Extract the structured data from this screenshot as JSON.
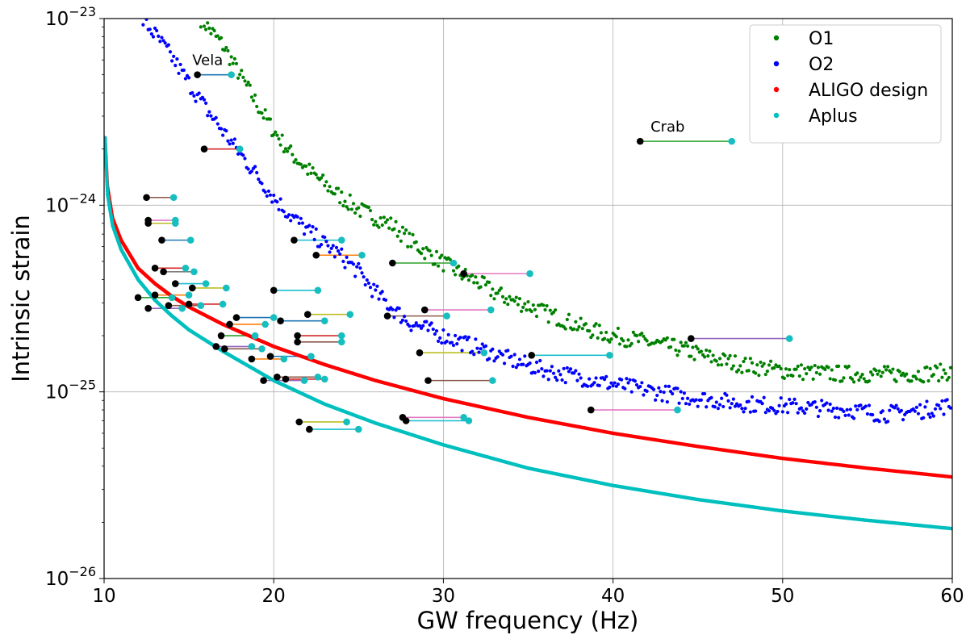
{
  "chart_data": {
    "type": "scatter",
    "xlabel": "GW frequency (Hz)",
    "ylabel": "Intrinsic strain",
    "xlim": [
      10,
      60
    ],
    "ylim": [
      1e-26,
      1e-23
    ],
    "yscale": "log",
    "grid": true,
    "legend_position": "top-right",
    "x_ticks": [
      {
        "value": 10,
        "label": "10"
      },
      {
        "value": 20,
        "label": "20"
      },
      {
        "value": 30,
        "label": "30"
      },
      {
        "value": 40,
        "label": "40"
      },
      {
        "value": 50,
        "label": "50"
      },
      {
        "value": 60,
        "label": "60"
      }
    ],
    "y_ticks": [
      {
        "value": 1e-26,
        "base": "10",
        "exp": "−26"
      },
      {
        "value": 1e-25,
        "base": "10",
        "exp": "−25"
      },
      {
        "value": 1e-24,
        "base": "10",
        "exp": "−24"
      },
      {
        "value": 1e-23,
        "base": "10",
        "exp": "−23"
      }
    ],
    "series": [
      {
        "name": "O1",
        "color": "#008000",
        "kind": "noisy",
        "points": [
          [
            15.7,
            1e-23
          ],
          [
            17,
            7.2e-24
          ],
          [
            18,
            5e-24
          ],
          [
            19,
            3.5e-24
          ],
          [
            20,
            2.5e-24
          ],
          [
            21,
            1.9e-24
          ],
          [
            22,
            1.55e-24
          ],
          [
            23,
            1.3e-24
          ],
          [
            24,
            1.1e-24
          ],
          [
            25,
            9.5e-25
          ],
          [
            26,
            8.6e-25
          ],
          [
            27,
            7.8e-25
          ],
          [
            28,
            6.5e-25
          ],
          [
            29,
            5.6e-25
          ],
          [
            30,
            4.9e-25
          ],
          [
            31,
            4.3e-25
          ],
          [
            32,
            3.9e-25
          ],
          [
            33,
            3.4e-25
          ],
          [
            34,
            3.1e-25
          ],
          [
            35,
            2.9e-25
          ],
          [
            36,
            2.65e-25
          ],
          [
            37,
            2.45e-25
          ],
          [
            38,
            2.25e-25
          ],
          [
            39,
            2.1e-25
          ],
          [
            40,
            2e-25
          ],
          [
            42,
            1.85e-25
          ],
          [
            44,
            1.7e-25
          ],
          [
            46,
            1.5e-25
          ],
          [
            48,
            1.38e-25
          ],
          [
            50,
            1.3e-25
          ],
          [
            53,
            1.25e-25
          ],
          [
            56,
            1.24e-25
          ],
          [
            58,
            1.25e-25
          ],
          [
            60,
            1.28e-25
          ]
        ]
      },
      {
        "name": "O2",
        "color": "#0000ff",
        "kind": "noisy",
        "points": [
          [
            12.2,
            1e-23
          ],
          [
            13,
            8.2e-24
          ],
          [
            14,
            6.2e-24
          ],
          [
            15,
            4.5e-24
          ],
          [
            16,
            3.3e-24
          ],
          [
            17,
            2.5e-24
          ],
          [
            18,
            1.9e-24
          ],
          [
            19,
            1.45e-24
          ],
          [
            20,
            1.1e-24
          ],
          [
            21,
            8.8e-25
          ],
          [
            22,
            7.3e-25
          ],
          [
            23,
            6.2e-25
          ],
          [
            24,
            5.3e-25
          ],
          [
            25,
            4.4e-25
          ],
          [
            26,
            3.4e-25
          ],
          [
            27,
            2.8e-25
          ],
          [
            28,
            2.35e-25
          ],
          [
            30,
            2e-25
          ],
          [
            32,
            1.72e-25
          ],
          [
            34,
            1.48e-25
          ],
          [
            36,
            1.3e-25
          ],
          [
            38,
            1.2e-25
          ],
          [
            40,
            1.1e-25
          ],
          [
            42,
            1.02e-25
          ],
          [
            44,
            9.5e-26
          ],
          [
            46,
            9e-26
          ],
          [
            48,
            8.6e-26
          ],
          [
            50,
            8.4e-26
          ],
          [
            52,
            8.2e-26
          ],
          [
            54,
            8e-26
          ],
          [
            56,
            7.6e-26
          ],
          [
            58,
            7.9e-26
          ],
          [
            60,
            8.5e-26
          ]
        ]
      },
      {
        "name": "ALIGO design",
        "color": "#ff0000",
        "kind": "smooth",
        "points": [
          [
            10.05,
            2.3e-24
          ],
          [
            10.2,
            1.25e-24
          ],
          [
            10.5,
            8.5e-25
          ],
          [
            11,
            6.5e-25
          ],
          [
            12,
            4.6e-25
          ],
          [
            13,
            3.8e-25
          ],
          [
            14,
            3.25e-25
          ],
          [
            15,
            2.85e-25
          ],
          [
            17,
            2.3e-25
          ],
          [
            20,
            1.75e-25
          ],
          [
            23,
            1.4e-25
          ],
          [
            26,
            1.15e-25
          ],
          [
            30,
            9.2e-26
          ],
          [
            35,
            7.3e-26
          ],
          [
            40,
            6e-26
          ],
          [
            45,
            5.1e-26
          ],
          [
            50,
            4.4e-26
          ],
          [
            55,
            3.9e-26
          ],
          [
            60,
            3.5e-26
          ]
        ]
      },
      {
        "name": "Aplus",
        "color": "#00bfbf",
        "kind": "smooth",
        "points": [
          [
            10.05,
            2.3e-24
          ],
          [
            10.2,
            1.15e-24
          ],
          [
            10.5,
            7.8e-25
          ],
          [
            11,
            5.8e-25
          ],
          [
            12,
            4e-25
          ],
          [
            13,
            3.1e-25
          ],
          [
            14,
            2.55e-25
          ],
          [
            15,
            2.15e-25
          ],
          [
            17,
            1.65e-25
          ],
          [
            20,
            1.15e-25
          ],
          [
            23,
            8.6e-26
          ],
          [
            26,
            6.8e-26
          ],
          [
            30,
            5.2e-26
          ],
          [
            35,
            3.9e-26
          ],
          [
            40,
            3.15e-26
          ],
          [
            45,
            2.65e-26
          ],
          [
            50,
            2.3e-26
          ],
          [
            55,
            2.05e-26
          ],
          [
            60,
            1.85e-26
          ]
        ]
      }
    ],
    "pulsar_pairs": [
      {
        "x1": 15.5,
        "x2": 17.5,
        "y": 5e-24,
        "color": "#1f77b4",
        "label": "Vela"
      },
      {
        "x1": 15.9,
        "x2": 18.0,
        "y": 2e-24,
        "color": "#d62728"
      },
      {
        "x1": 12.5,
        "x2": 14.1,
        "y": 1.1e-24,
        "color": "#8c564b"
      },
      {
        "x1": 12.6,
        "x2": 14.2,
        "y": 8.3e-25,
        "color": "#e377c2"
      },
      {
        "x1": 12.6,
        "x2": 14.2,
        "y": 8e-25,
        "color": "#bcbd22"
      },
      {
        "x1": 13.4,
        "x2": 15.1,
        "y": 6.5e-25,
        "color": "#1f77b4"
      },
      {
        "x1": 13.0,
        "x2": 14.8,
        "y": 4.6e-25,
        "color": "#d62728"
      },
      {
        "x1": 13.5,
        "x2": 15.3,
        "y": 4.4e-25,
        "color": "#7f7f7f"
      },
      {
        "x1": 14.2,
        "x2": 16.0,
        "y": 3.8e-25,
        "color": "#17becf"
      },
      {
        "x1": 15.2,
        "x2": 17.2,
        "y": 3.6e-25,
        "color": "#bcbd22"
      },
      {
        "x1": 12.0,
        "x2": 14.0,
        "y": 3.2e-25,
        "color": "#2ca02c"
      },
      {
        "x1": 13.0,
        "x2": 15.0,
        "y": 3.3e-25,
        "color": "#ff7f0e"
      },
      {
        "x1": 12.6,
        "x2": 14.6,
        "y": 2.8e-25,
        "color": "#9467bd"
      },
      {
        "x1": 13.8,
        "x2": 15.7,
        "y": 2.9e-25,
        "color": "#8c564b"
      },
      {
        "x1": 15.0,
        "x2": 17.0,
        "y": 2.95e-25,
        "color": "#d62728"
      },
      {
        "x1": 17.8,
        "x2": 20.0,
        "y": 2.5e-25,
        "color": "#1f77b4"
      },
      {
        "x1": 17.4,
        "x2": 19.5,
        "y": 2.3e-25,
        "color": "#ff7f0e"
      },
      {
        "x1": 16.9,
        "x2": 18.9,
        "y": 2e-25,
        "color": "#2ca02c"
      },
      {
        "x1": 16.6,
        "x2": 18.7,
        "y": 1.75e-25,
        "color": "#9467bd"
      },
      {
        "x1": 17.1,
        "x2": 19.3,
        "y": 1.7e-25,
        "color": "#8c564b"
      },
      {
        "x1": 18.7,
        "x2": 20.6,
        "y": 1.5e-25,
        "color": "#ff7f0e"
      },
      {
        "x1": 19.8,
        "x2": 22.2,
        "y": 1.55e-25,
        "color": "#1f77b4"
      },
      {
        "x1": 19.4,
        "x2": 21.8,
        "y": 1.15e-25,
        "color": "#9467bd"
      },
      {
        "x1": 20.2,
        "x2": 22.6,
        "y": 1.2e-25,
        "color": "#8c564b"
      },
      {
        "x1": 20.7,
        "x2": 23.0,
        "y": 1.17e-25,
        "color": "#d62728"
      },
      {
        "x1": 20.0,
        "x2": 22.6,
        "y": 3.5e-25,
        "color": "#17becf"
      },
      {
        "x1": 20.4,
        "x2": 23.0,
        "y": 2.4e-25,
        "color": "#1f77b4"
      },
      {
        "x1": 22.0,
        "x2": 24.5,
        "y": 2.6e-25,
        "color": "#bcbd22"
      },
      {
        "x1": 21.4,
        "x2": 24.0,
        "y": 2e-25,
        "color": "#d62728"
      },
      {
        "x1": 21.4,
        "x2": 24.0,
        "y": 1.85e-25,
        "color": "#8c564b"
      },
      {
        "x1": 21.2,
        "x2": 24.0,
        "y": 6.5e-25,
        "color": "#17becf"
      },
      {
        "x1": 22.5,
        "x2": 25.2,
        "y": 5.4e-25,
        "color": "#ff7f0e"
      },
      {
        "x1": 21.5,
        "x2": 24.3,
        "y": 6.9e-26,
        "color": "#bcbd22"
      },
      {
        "x1": 22.1,
        "x2": 25.0,
        "y": 6.3e-26,
        "color": "#17becf"
      },
      {
        "x1": 27.0,
        "x2": 30.6,
        "y": 4.9e-25,
        "color": "#2ca02c"
      },
      {
        "x1": 31.2,
        "x2": 35.1,
        "y": 4.3e-25,
        "color": "#e377c2"
      },
      {
        "x1": 28.9,
        "x2": 32.8,
        "y": 2.75e-25,
        "color": "#e377c2"
      },
      {
        "x1": 26.7,
        "x2": 30.2,
        "y": 2.55e-25,
        "color": "#8c564b"
      },
      {
        "x1": 28.6,
        "x2": 32.4,
        "y": 1.62e-25,
        "color": "#bcbd22"
      },
      {
        "x1": 29.1,
        "x2": 32.9,
        "y": 1.15e-25,
        "color": "#8c564b"
      },
      {
        "x1": 27.6,
        "x2": 31.2,
        "y": 7.3e-26,
        "color": "#e377c2"
      },
      {
        "x1": 27.8,
        "x2": 31.5,
        "y": 7e-26,
        "color": "#17becf"
      },
      {
        "x1": 35.2,
        "x2": 39.8,
        "y": 1.57e-25,
        "color": "#17becf"
      },
      {
        "x1": 38.7,
        "x2": 43.8,
        "y": 8e-26,
        "color": "#e377c2"
      },
      {
        "x1": 44.6,
        "x2": 50.4,
        "y": 1.93e-25,
        "color": "#9467bd"
      },
      {
        "x1": 41.6,
        "x2": 47.0,
        "y": 2.2e-24,
        "color": "#2ca02c",
        "label": "Crab"
      }
    ]
  }
}
